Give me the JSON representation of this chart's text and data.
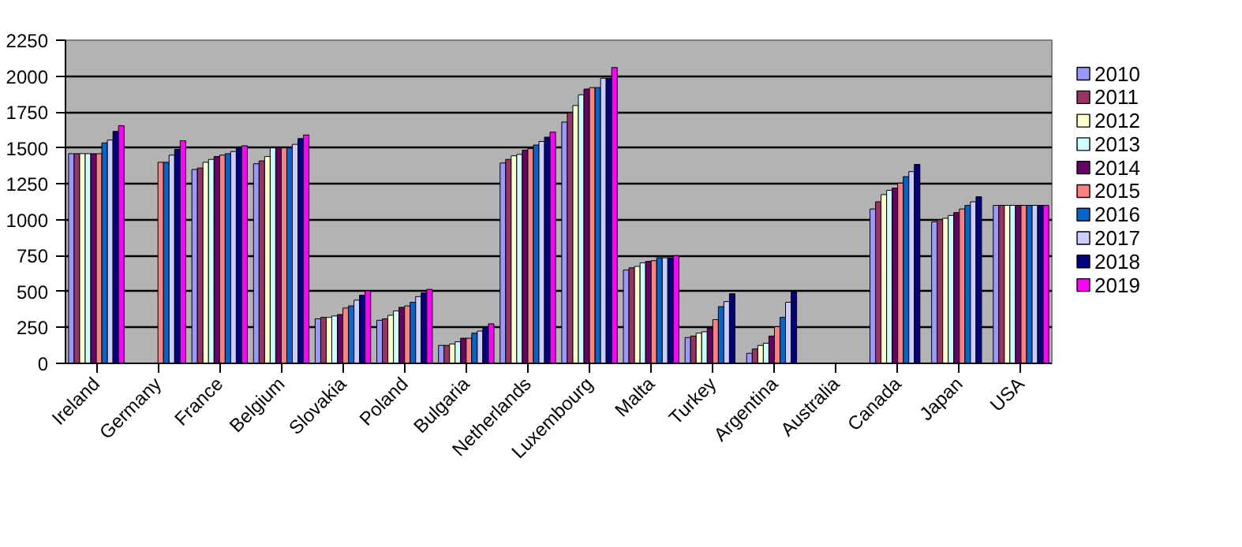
{
  "chart_data": {
    "type": "bar",
    "categories": [
      "Ireland",
      "Germany",
      "France",
      "Belgium",
      "Slovakia",
      "Poland",
      "Bulgaria",
      "Netherlands",
      "Luxembourg",
      "Malta",
      "Turkey",
      "Argentina",
      "Australia",
      "Canada",
      "Japan",
      "USA"
    ],
    "ylim": [
      0,
      2250
    ],
    "yticks": [
      0,
      250,
      500,
      750,
      1000,
      1250,
      1500,
      1750,
      2000,
      2250
    ],
    "grid": "y",
    "legend": "right",
    "series": [
      {
        "name": "2010",
        "color": "#9999ff",
        "values": [
          1460,
          null,
          1350,
          1390,
          310,
          300,
          125,
          1395,
          1680,
          650,
          180,
          70,
          null,
          1075,
          985,
          1100
        ]
      },
      {
        "name": "2011",
        "color": "#993366",
        "values": [
          1460,
          null,
          1360,
          1410,
          320,
          310,
          125,
          1420,
          1745,
          665,
          190,
          100,
          null,
          1125,
          1000,
          1100
        ]
      },
      {
        "name": "2012",
        "color": "#ffffcc",
        "values": [
          1460,
          null,
          1400,
          1440,
          320,
          335,
          135,
          1445,
          1795,
          675,
          210,
          125,
          null,
          1175,
          1010,
          1100
        ]
      },
      {
        "name": "2013",
        "color": "#ccffff",
        "values": [
          1460,
          null,
          1420,
          1500,
          330,
          365,
          150,
          1455,
          1870,
          700,
          220,
          140,
          null,
          1205,
          1030,
          1100
        ]
      },
      {
        "name": "2014",
        "color": "#660066",
        "values": [
          1460,
          null,
          1440,
          1500,
          340,
          390,
          175,
          1485,
          1910,
          710,
          245,
          190,
          null,
          1220,
          1050,
          1100
        ]
      },
      {
        "name": "2015",
        "color": "#ff8080",
        "values": [
          1460,
          1400,
          1450,
          1500,
          385,
          400,
          175,
          1495,
          1920,
          715,
          305,
          255,
          null,
          1255,
          1075,
          1100
        ]
      },
      {
        "name": "2016",
        "color": "#0066cc",
        "values": [
          1535,
          1400,
          1460,
          1500,
          400,
          425,
          210,
          1520,
          1920,
          735,
          395,
          320,
          null,
          1300,
          1100,
          1100
        ]
      },
      {
        "name": "2017",
        "color": "#ccccff",
        "values": [
          1555,
          1450,
          1475,
          1525,
          440,
          465,
          225,
          1545,
          1985,
          735,
          430,
          425,
          null,
          1335,
          1125,
          1100
        ]
      },
      {
        "name": "2018",
        "color": "#000080",
        "values": [
          1615,
          1490,
          1500,
          1565,
          475,
          490,
          250,
          1575,
          1985,
          735,
          485,
          500,
          null,
          1385,
          1160,
          1100
        ]
      },
      {
        "name": "2019",
        "color": "#ff00ff",
        "values": [
          1655,
          1550,
          1515,
          1590,
          505,
          515,
          275,
          1610,
          2060,
          750,
          null,
          null,
          null,
          null,
          null,
          1100
        ]
      }
    ]
  }
}
